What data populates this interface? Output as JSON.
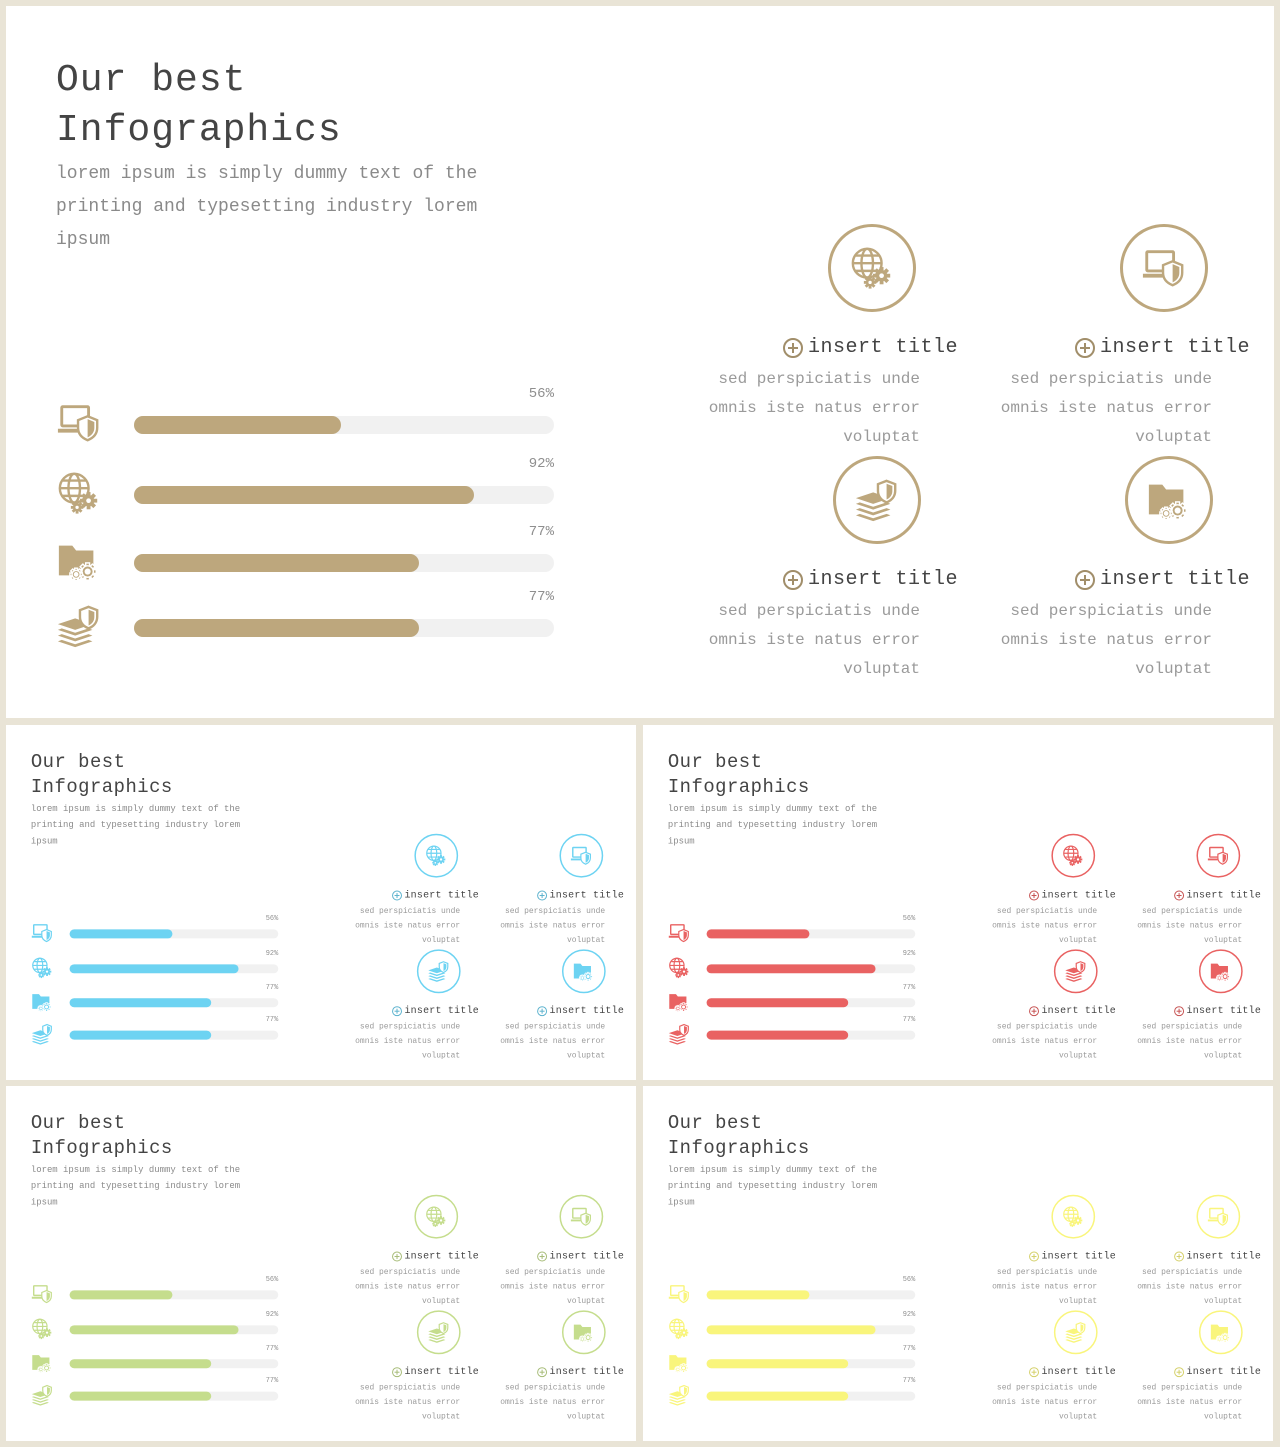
{
  "slides": [
    {
      "theme": "#bda77d"
    },
    {
      "theme": "#6dd3f2"
    },
    {
      "theme": "#e96262"
    },
    {
      "theme": "#c5dd8d"
    },
    {
      "theme": "#f9f57c"
    }
  ],
  "content": {
    "title": "Our best\nInfographics",
    "subtitle": "lorem ipsum is simply dummy text of the printing and typesetting industry lorem ipsum",
    "bars": [
      {
        "icon": "laptop-shield-icon",
        "label": "56%",
        "value": 56
      },
      {
        "icon": "globe-gear-icon",
        "label": "92%",
        "value": 92
      },
      {
        "icon": "folder-gear-icon",
        "label": "77%",
        "value": 77
      },
      {
        "icon": "stack-shield-icon",
        "label": "77%",
        "value": 77
      }
    ],
    "cards": [
      {
        "icon": "globe-gear-icon",
        "title": "insert title",
        "desc": "sed perspiciatis unde omnis iste natus error voluptat"
      },
      {
        "icon": "laptop-shield-icon",
        "title": "insert title",
        "desc": "sed perspiciatis unde omnis iste natus error voluptat"
      },
      {
        "icon": "stack-shield-icon",
        "title": "insert title",
        "desc": "sed perspiciatis unde omnis iste natus error voluptat"
      },
      {
        "icon": "folder-gear-icon",
        "title": "insert title",
        "desc": "sed perspiciatis unde omnis iste natus error voluptat"
      }
    ]
  }
}
